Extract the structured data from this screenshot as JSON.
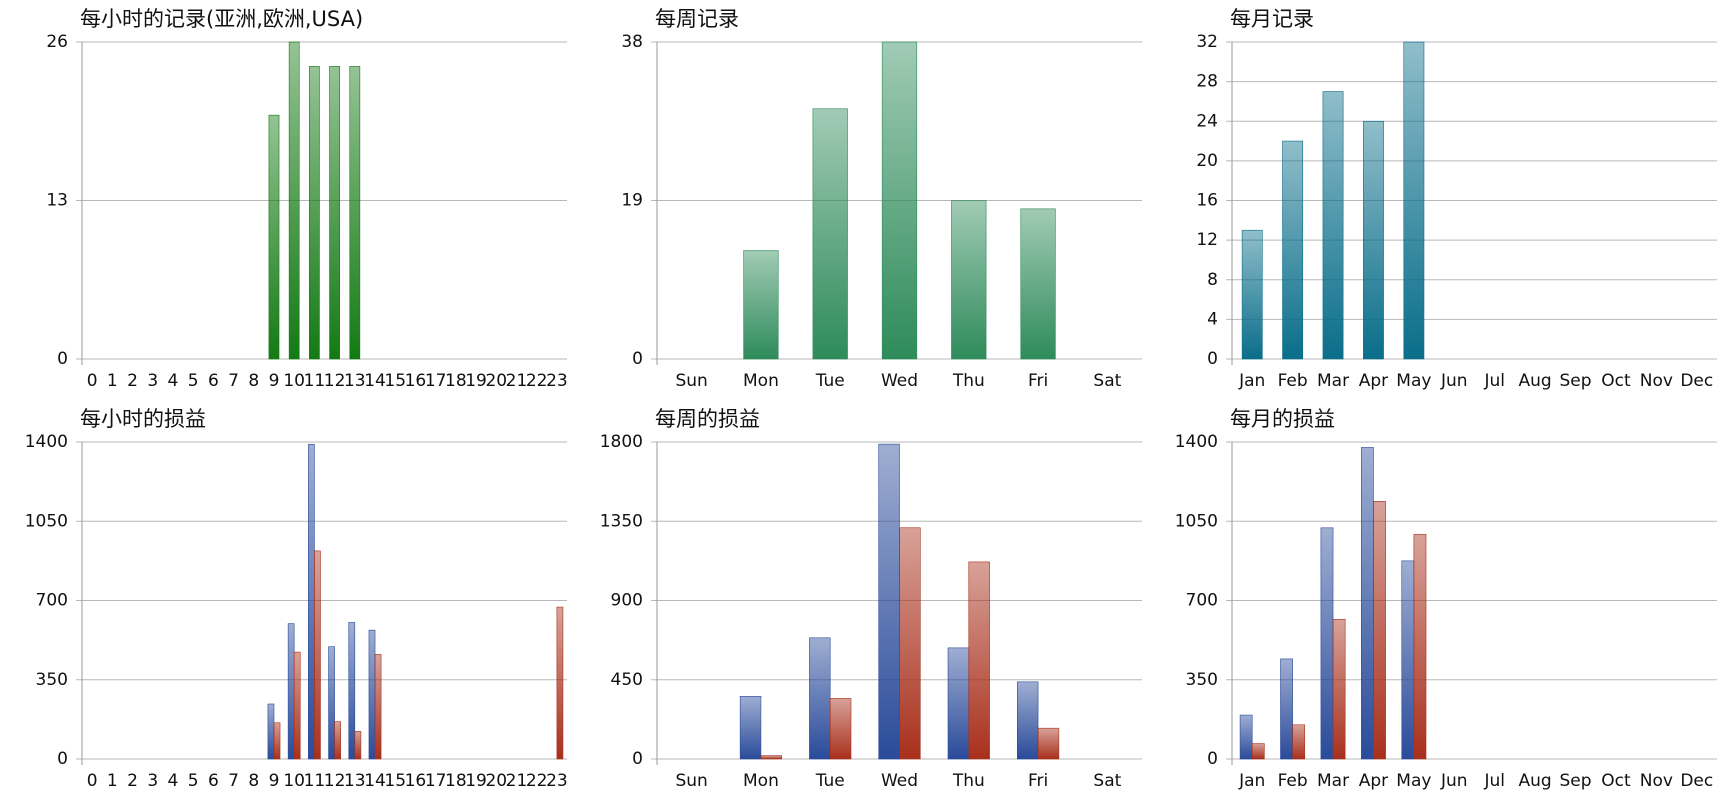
{
  "chart_data": [
    {
      "type": "bar",
      "title": "每小时的记录(亚洲,欧洲,USA)",
      "categories": [
        "0",
        "1",
        "2",
        "3",
        "4",
        "5",
        "6",
        "7",
        "8",
        "9",
        "10",
        "11",
        "12",
        "13",
        "14",
        "15",
        "16",
        "17",
        "18",
        "19",
        "20",
        "21",
        "22",
        "23"
      ],
      "values": [
        0,
        0,
        0,
        0,
        0,
        0,
        0,
        0,
        0,
        20,
        26,
        24,
        24,
        24,
        0,
        0,
        0,
        0,
        0,
        0,
        0,
        0,
        0,
        0
      ],
      "color": "#137a13",
      "ylim": [
        0,
        26
      ],
      "yticks": [
        0,
        13,
        26
      ],
      "grid": true
    },
    {
      "type": "bar",
      "title": "每周记录",
      "categories": [
        "Sun",
        "Mon",
        "Tue",
        "Wed",
        "Thu",
        "Fri",
        "Sat"
      ],
      "values": [
        0,
        13,
        30,
        38,
        19,
        18,
        0
      ],
      "color": "#2e8b5a",
      "ylim": [
        0,
        38
      ],
      "yticks": [
        0,
        19,
        38
      ],
      "grid": true
    },
    {
      "type": "bar",
      "title": "每月记录",
      "categories": [
        "Jan",
        "Feb",
        "Mar",
        "Apr",
        "May",
        "Jun",
        "Jul",
        "Aug",
        "Sep",
        "Oct",
        "Nov",
        "Dec"
      ],
      "values": [
        13,
        22,
        27,
        24,
        32,
        0,
        0,
        0,
        0,
        0,
        0,
        0
      ],
      "color": "#0a6e8a",
      "ylim": [
        0,
        32
      ],
      "yticks": [
        0,
        4,
        8,
        12,
        16,
        20,
        24,
        28,
        32
      ],
      "grid": true
    },
    {
      "type": "grouped_bar",
      "title": "每小时的损益",
      "categories": [
        "0",
        "1",
        "2",
        "3",
        "4",
        "5",
        "6",
        "7",
        "8",
        "9",
        "10",
        "11",
        "12",
        "13",
        "14",
        "15",
        "16",
        "17",
        "18",
        "19",
        "20",
        "21",
        "22",
        "23"
      ],
      "series": [
        {
          "color": "#2a4b9a",
          "values": [
            0,
            0,
            0,
            0,
            0,
            0,
            0,
            0,
            0,
            243,
            598,
            1390,
            496,
            603,
            569,
            0,
            0,
            0,
            0,
            0,
            0,
            0,
            0,
            0
          ]
        },
        {
          "color": "#a8301c",
          "values": [
            0,
            0,
            0,
            0,
            0,
            0,
            0,
            0,
            0,
            160,
            472,
            919,
            165,
            122,
            462,
            0,
            0,
            0,
            0,
            0,
            0,
            0,
            0,
            671
          ]
        }
      ],
      "ylim": [
        0,
        1400
      ],
      "yticks": [
        0,
        350,
        700,
        1050,
        1400
      ],
      "grid": true
    },
    {
      "type": "grouped_bar",
      "title": "每周的损益",
      "categories": [
        "Sun",
        "Mon",
        "Tue",
        "Wed",
        "Thu",
        "Fri",
        "Sat"
      ],
      "series": [
        {
          "color": "#2a4b9a",
          "values": [
            0,
            356,
            688,
            1788,
            631,
            438,
            0
          ]
        },
        {
          "color": "#a8301c",
          "values": [
            0,
            19,
            344,
            1313,
            1119,
            175,
            0
          ]
        }
      ],
      "ylim": [
        0,
        1800
      ],
      "yticks": [
        0,
        450,
        900,
        1350,
        1800
      ],
      "grid": true
    },
    {
      "type": "grouped_bar",
      "title": "每月的损益",
      "categories": [
        "Jan",
        "Feb",
        "Mar",
        "Apr",
        "May",
        "Jun",
        "Jul",
        "Aug",
        "Sep",
        "Oct",
        "Nov",
        "Dec"
      ],
      "series": [
        {
          "color": "#2a4b9a",
          "values": [
            194,
            442,
            1021,
            1376,
            875,
            0,
            0,
            0,
            0,
            0,
            0,
            0
          ]
        },
        {
          "color": "#a8301c",
          "values": [
            68,
            151,
            617,
            1138,
            992,
            0,
            0,
            0,
            0,
            0,
            0,
            0
          ]
        }
      ],
      "ylim": [
        0,
        1400
      ],
      "yticks": [
        0,
        350,
        700,
        1050,
        1400
      ],
      "grid": true
    }
  ]
}
